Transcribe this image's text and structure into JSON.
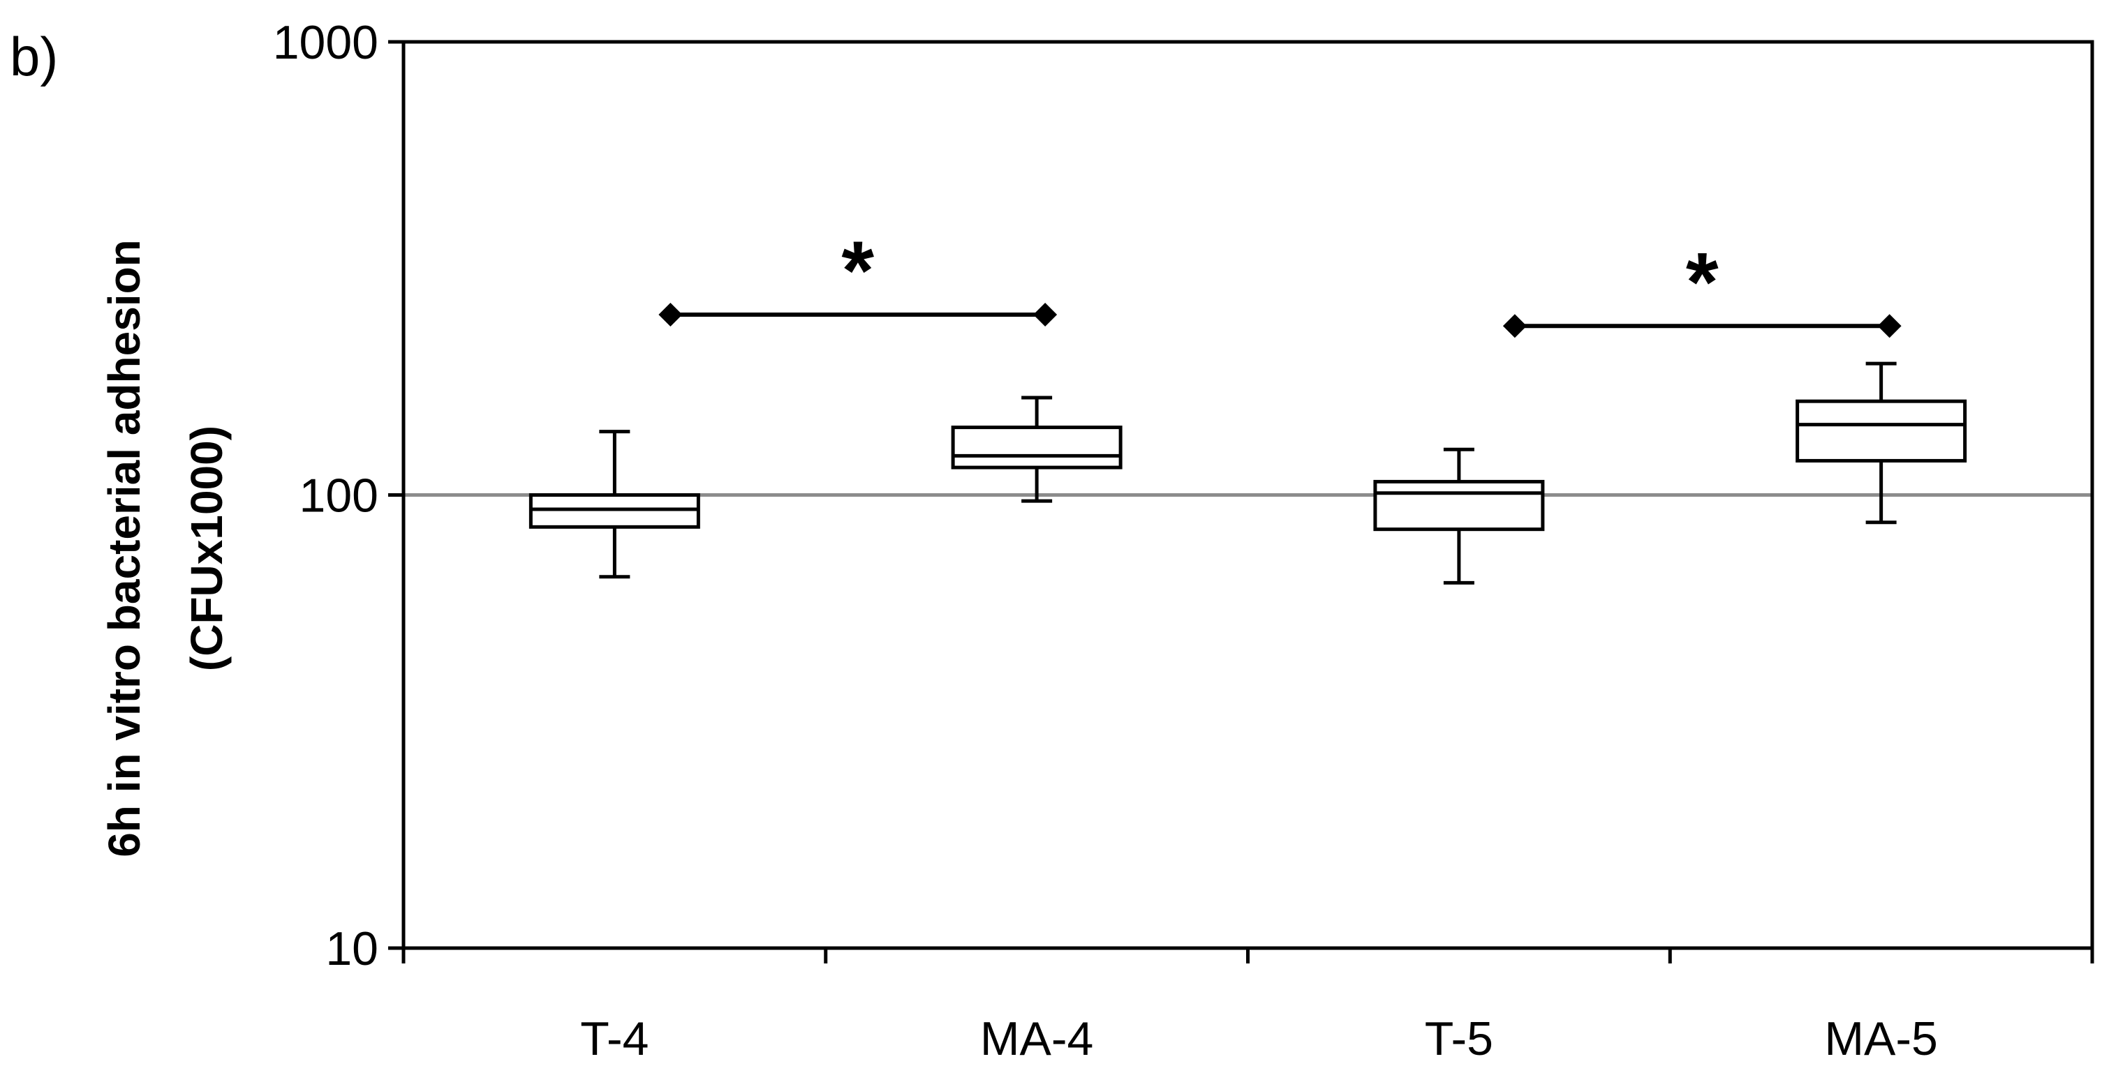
{
  "panel_label": "b)",
  "chart_data": {
    "type": "box",
    "title": "",
    "xlabel": "",
    "ylabel_line1": "6h in vitro bacterial adhesion",
    "ylabel_line2": "(CFUx1000)",
    "yscale": "log",
    "ylim": [
      10,
      1000
    ],
    "yticks": [
      "10",
      "100",
      "1000"
    ],
    "categories": [
      "T-4",
      "MA-4",
      "T-5",
      "MA-5"
    ],
    "boxes": [
      {
        "category": "T-4",
        "min": 66,
        "q1": 85,
        "median": 93,
        "q3": 100,
        "max": 138
      },
      {
        "category": "MA-4",
        "min": 97,
        "q1": 115,
        "median": 122,
        "q3": 141,
        "max": 164
      },
      {
        "category": "T-5",
        "min": 64,
        "q1": 84,
        "median": 101,
        "q3": 107,
        "max": 126
      },
      {
        "category": "MA-5",
        "min": 87,
        "q1": 119,
        "median": 143,
        "q3": 161,
        "max": 195
      }
    ],
    "reference_line": 100,
    "significance": [
      {
        "from": "T-4",
        "to": "MA-4",
        "y": 250,
        "label": "*"
      },
      {
        "from": "T-5",
        "to": "MA-5",
        "y": 236,
        "label": "*"
      }
    ],
    "colors": {
      "axis": "#000000",
      "box_fill": "#ffffff",
      "box_stroke": "#000000",
      "reference": "#8c8c8c"
    }
  }
}
